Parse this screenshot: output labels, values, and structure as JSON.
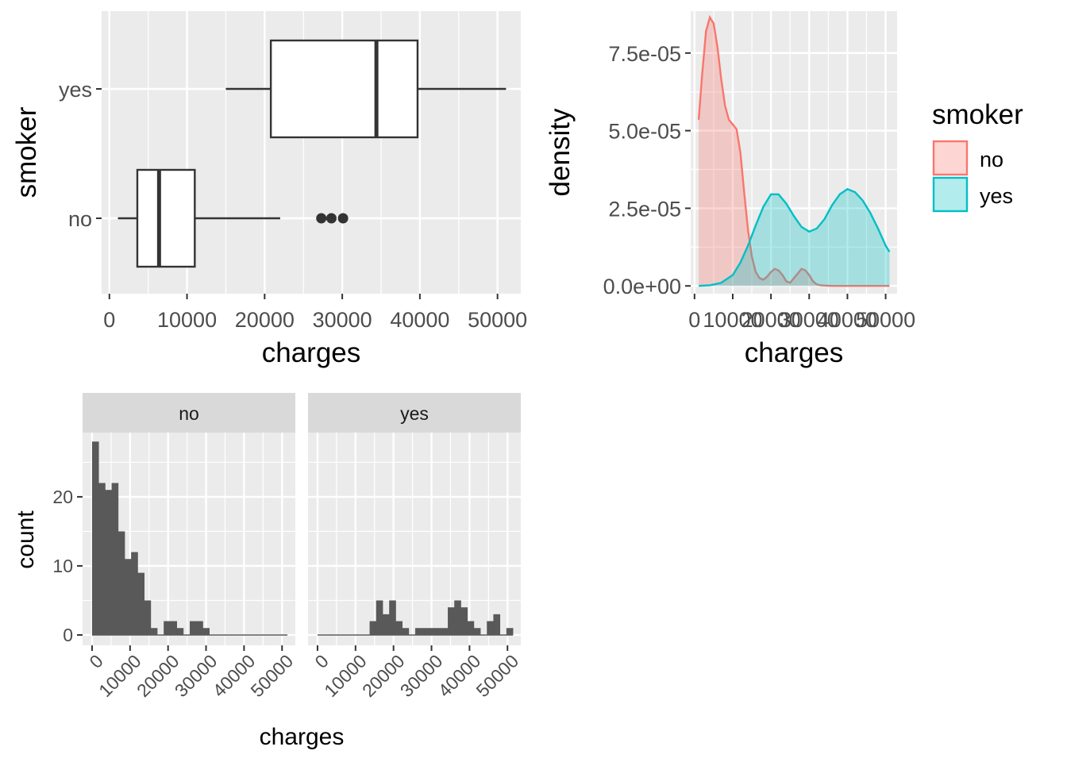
{
  "colors": {
    "panel_bg": "#EBEBEB",
    "grid": "#FFFFFF",
    "no": "#F8766D",
    "yes": "#00BFC4",
    "bar": "#595959",
    "strip_bg": "#D9D9D9"
  },
  "chart_data": [
    {
      "type": "boxplot",
      "title": "",
      "xlabel": "charges",
      "ylabel": "smoker",
      "categories": [
        "no",
        "yes"
      ],
      "xlim": [
        -1000,
        53000
      ],
      "xticks": [
        0,
        10000,
        20000,
        30000,
        40000,
        50000
      ],
      "xtick_labels": [
        "0",
        "10000",
        "20000",
        "30000",
        "40000",
        "50000"
      ],
      "grid": true,
      "boxes": [
        {
          "category": "no",
          "whisker_low": 1100,
          "q1": 3600,
          "median": 6400,
          "q3": 11000,
          "whisker_high": 22000,
          "outliers": [
            27300,
            28600,
            30100
          ]
        },
        {
          "category": "yes",
          "whisker_low": 15000,
          "q1": 20800,
          "median": 34400,
          "q3": 39700,
          "whisker_high": 51100,
          "outliers": []
        }
      ]
    },
    {
      "type": "area",
      "title": "",
      "xlabel": "charges",
      "ylabel": "density",
      "xlim": [
        -1000,
        53000
      ],
      "ylim": [
        -2.5e-06,
        8.85e-05
      ],
      "xticks": [
        0,
        10000,
        20000,
        30000,
        40000,
        50000
      ],
      "xtick_labels": [
        "0",
        "10000",
        "20000",
        "30000",
        "40000",
        "50000"
      ],
      "yticks": [
        0,
        2.5e-05,
        5e-05,
        7.5e-05
      ],
      "ytick_labels": [
        "0.0e+00",
        "2.5e-05",
        "5.0e-05",
        "7.5e-05"
      ],
      "grid": true,
      "legend": {
        "title": "smoker",
        "placement": "right",
        "entries": [
          "no",
          "yes"
        ]
      },
      "series": [
        {
          "name": "no",
          "x": [
            1100,
            2000,
            3000,
            4000,
            5000,
            6000,
            7000,
            8000,
            9000,
            10000,
            11000,
            12000,
            13000,
            14000,
            15000,
            16000,
            17000,
            18000,
            19000,
            20000,
            21000,
            22000,
            23000,
            24000,
            25000,
            26000,
            27000,
            28000,
            29000,
            30000,
            31000,
            32000,
            33000,
            34000,
            36000,
            40000,
            45000,
            50000,
            51000
          ],
          "y": [
            5.35e-05,
            6.8e-05,
            8.2e-05,
            8.65e-05,
            8.45e-05,
            7.7e-05,
            6.65e-05,
            5.8e-05,
            5.35e-05,
            5.2e-05,
            5.05e-05,
            4.3e-05,
            3e-05,
            1.8e-05,
            9.5e-06,
            4.5e-06,
            2.5e-06,
            2e-06,
            3e-06,
            4.5e-06,
            5.5e-06,
            5e-06,
            3.5e-06,
            1.5e-06,
            1e-06,
            2.5e-06,
            4e-06,
            5.5e-06,
            5e-06,
            3.5e-06,
            1.5e-06,
            5e-07,
            2e-07,
            1e-07,
            0,
            0,
            0,
            0,
            0
          ]
        },
        {
          "name": "yes",
          "x": [
            1100,
            4000,
            7000,
            10000,
            12000,
            14000,
            16000,
            18000,
            20000,
            22000,
            24000,
            26000,
            28000,
            30000,
            32000,
            34000,
            36000,
            38000,
            40000,
            42000,
            44000,
            46000,
            48000,
            50000,
            51000
          ],
          "y": [
            0,
            2e-07,
            1e-06,
            3.5e-06,
            7.5e-06,
            1.3e-05,
            1.95e-05,
            2.55e-05,
            2.95e-05,
            2.95e-05,
            2.65e-05,
            2.25e-05,
            1.9e-05,
            1.75e-05,
            1.85e-05,
            2.15e-05,
            2.6e-05,
            2.95e-05,
            3.12e-05,
            3.02e-05,
            2.75e-05,
            2.35e-05,
            1.85e-05,
            1.3e-05,
            1.1e-05
          ]
        }
      ]
    },
    {
      "type": "bar",
      "subtype": "histogram-faceted",
      "title": "",
      "xlabel": "charges",
      "ylabel": "count",
      "xlim": [
        -2500,
        53500
      ],
      "ylim": [
        -1.5,
        29.3
      ],
      "xticks": [
        0,
        10000,
        20000,
        30000,
        40000,
        50000
      ],
      "xtick_labels": [
        "0",
        "10000",
        "20000",
        "30000",
        "40000",
        "50000"
      ],
      "yticks": [
        0,
        10,
        20
      ],
      "ytick_labels": [
        "0",
        "10",
        "20"
      ],
      "grid": true,
      "bin_width": 1714,
      "bin_start": 0,
      "panels": [
        {
          "label": "no",
          "counts": [
            28,
            22,
            21,
            22,
            15,
            11,
            12,
            9,
            5,
            1,
            0,
            2,
            2,
            1,
            0,
            2,
            2,
            1,
            0,
            0,
            0,
            0,
            0,
            0,
            0,
            0,
            0,
            0,
            0,
            0
          ]
        },
        {
          "label": "yes",
          "counts": [
            0,
            0,
            0,
            0,
            0,
            0,
            0,
            0,
            2,
            5,
            3,
            5,
            2,
            1,
            0,
            1,
            1,
            1,
            1,
            1,
            4,
            5,
            4,
            2,
            1,
            0,
            2,
            3,
            0,
            1
          ]
        }
      ]
    }
  ]
}
